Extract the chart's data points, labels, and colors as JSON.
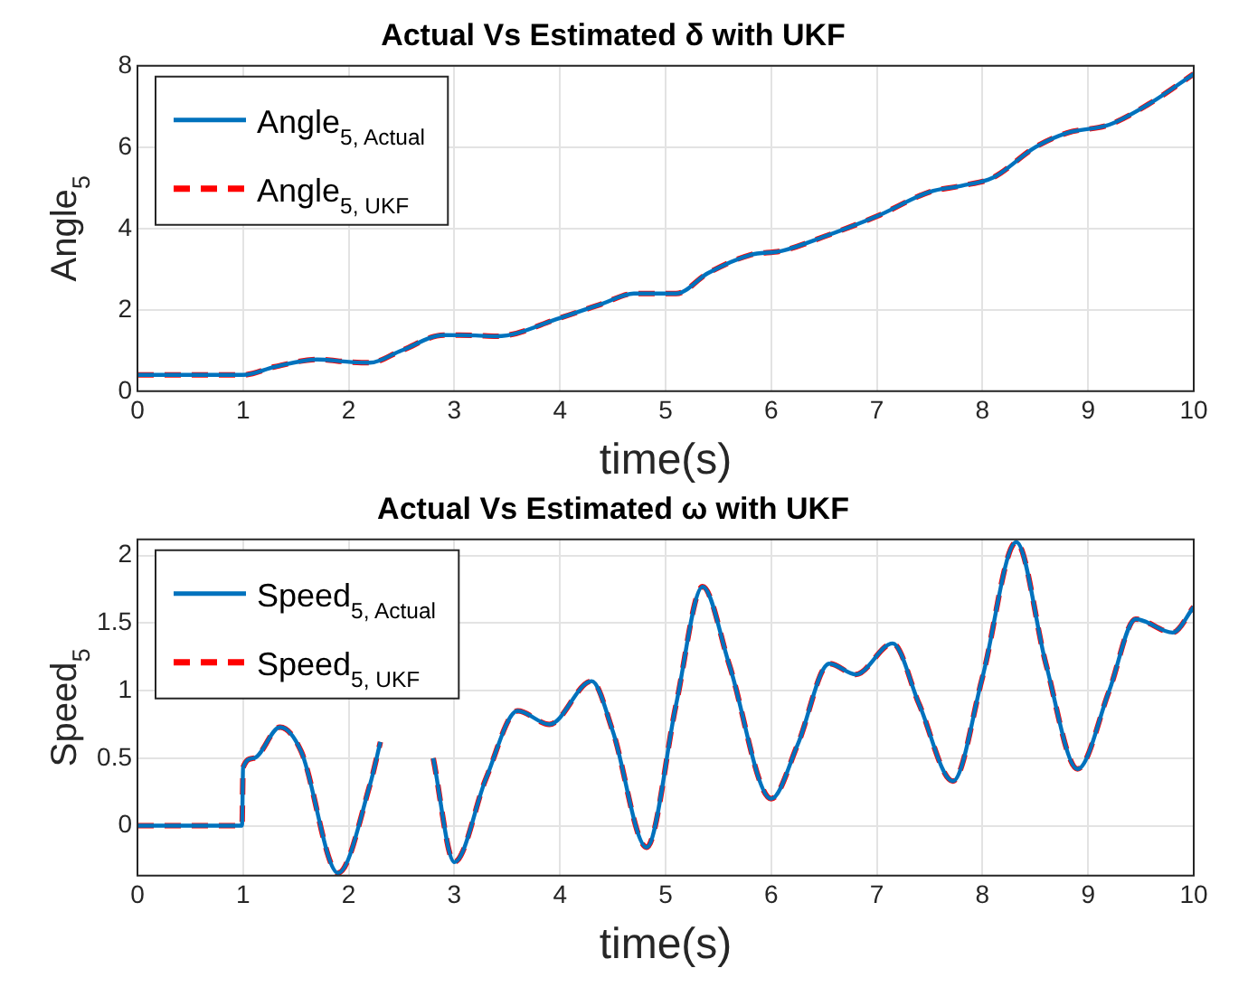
{
  "chart_data": [
    {
      "type": "line",
      "title": "Actual Vs Estimated δ with UKF",
      "xlabel": "time(s)",
      "ylabel": "Angle$_{5}$",
      "xlim": [
        0,
        10
      ],
      "ylim": [
        0,
        8
      ],
      "xticks": [
        0,
        1,
        2,
        3,
        4,
        5,
        6,
        7,
        8,
        9,
        10
      ],
      "yticks": [
        0,
        2,
        4,
        6,
        8
      ],
      "grid": true,
      "legend": "top left",
      "marker": "none",
      "series": [
        {
          "name": "Angle$_{5, Actual}$",
          "color": "#0072bd",
          "line_style": "solid",
          "x": [
            0,
            1,
            1.3,
            1.7,
            2,
            2.2,
            2.5,
            2.9,
            3.2,
            3.4,
            4,
            4.4,
            4.7,
            5.1,
            5.4,
            5.8,
            6.1,
            6.5,
            7,
            7.5,
            7.8,
            8.1,
            8.5,
            8.8,
            9.2,
            9.6,
            10
          ],
          "values": [
            0.4,
            0.4,
            0.6,
            0.78,
            0.72,
            0.7,
            1.0,
            1.38,
            1.37,
            1.35,
            1.8,
            2.15,
            2.4,
            2.4,
            2.9,
            3.35,
            3.45,
            3.8,
            4.3,
            4.9,
            5.05,
            5.25,
            6.0,
            6.35,
            6.55,
            7.1,
            7.8
          ]
        },
        {
          "name": "Angle$_{5, UKF}$",
          "color": "#ff0000",
          "line_style": "dashed",
          "x": [
            0,
            1,
            1.3,
            1.7,
            2,
            2.2,
            2.5,
            2.9,
            3.2,
            3.4,
            4,
            4.4,
            4.7,
            5.1,
            5.4,
            5.8,
            6.1,
            6.5,
            7,
            7.5,
            7.8,
            8.1,
            8.5,
            8.8,
            9.2,
            9.6,
            10
          ],
          "values": [
            0.4,
            0.4,
            0.6,
            0.78,
            0.72,
            0.7,
            1.0,
            1.38,
            1.37,
            1.35,
            1.8,
            2.15,
            2.4,
            2.4,
            2.9,
            3.35,
            3.45,
            3.8,
            4.3,
            4.9,
            5.05,
            5.25,
            6.0,
            6.35,
            6.55,
            7.1,
            7.8
          ]
        }
      ]
    },
    {
      "type": "line",
      "title": "Actual Vs Estimated ω with UKF",
      "xlabel": "time(s)",
      "ylabel": "Speed$_{5}$",
      "xlim": [
        0,
        10
      ],
      "ylim": [
        -0.37,
        2.12
      ],
      "xticks": [
        0,
        1,
        2,
        3,
        4,
        5,
        6,
        7,
        8,
        9,
        10
      ],
      "yticks": [
        0,
        0.5,
        1,
        1.5,
        2
      ],
      "grid": true,
      "legend": "top left",
      "marker": "none",
      "series": [
        {
          "name": "Speed$_{5, Actual}$",
          "color": "#0072bd",
          "line_style": "solid",
          "x": [
            0,
            0.99,
            1,
            1.1,
            1.35,
            1.55,
            1.9,
            2.2,
            2.3,
            2.5,
            2.8,
            3,
            3.3,
            3.6,
            3.9,
            4.3,
            4.5,
            4.82,
            5.1,
            5.35,
            5.6,
            6,
            6.25,
            6.55,
            6.8,
            7.15,
            7.4,
            7.72,
            8,
            8.32,
            8.6,
            8.9,
            9.2,
            9.45,
            9.8,
            10
          ],
          "values": [
            0,
            0,
            0.43,
            0.5,
            0.73,
            0.55,
            -0.35,
            0.3,
            0.62,
            null,
            0.5,
            -0.27,
            0.35,
            0.85,
            0.75,
            1.07,
            0.7,
            -0.16,
            0.9,
            1.77,
            1.2,
            0.2,
            0.6,
            1.2,
            1.12,
            1.35,
            0.9,
            0.33,
            1.1,
            2.1,
            1.2,
            0.42,
            1.0,
            1.53,
            1.43,
            1.62
          ]
        },
        {
          "name": "Speed$_{5, UKF}$",
          "color": "#ff0000",
          "line_style": "dashed",
          "x": [
            0,
            0.99,
            1,
            1.1,
            1.35,
            1.55,
            1.9,
            2.2,
            2.3,
            2.5,
            2.8,
            3,
            3.3,
            3.6,
            3.9,
            4.3,
            4.5,
            4.82,
            5.1,
            5.35,
            5.6,
            6,
            6.25,
            6.55,
            6.8,
            7.15,
            7.4,
            7.72,
            8,
            8.32,
            8.6,
            8.9,
            9.2,
            9.45,
            9.8,
            10
          ],
          "values": [
            0,
            0,
            0.43,
            0.5,
            0.73,
            0.55,
            -0.35,
            0.3,
            0.62,
            null,
            0.5,
            -0.27,
            0.35,
            0.85,
            0.75,
            1.07,
            0.7,
            -0.16,
            0.9,
            1.77,
            1.2,
            0.2,
            0.6,
            1.2,
            1.12,
            1.35,
            0.9,
            0.33,
            1.1,
            2.1,
            1.2,
            0.42,
            1.0,
            1.53,
            1.43,
            1.62
          ]
        }
      ]
    }
  ]
}
